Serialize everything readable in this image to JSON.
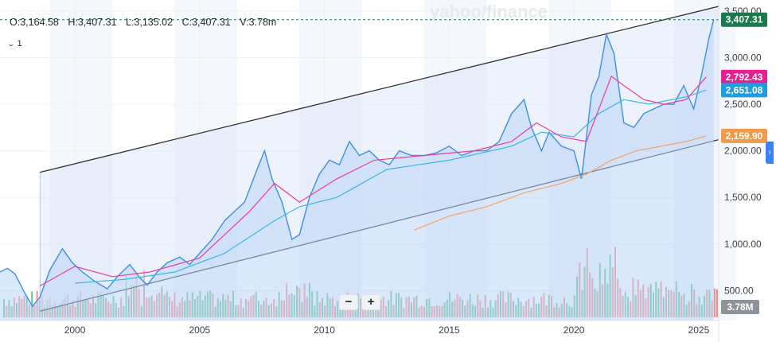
{
  "watermark": "yahoo/finance",
  "ohlc": {
    "open": "O:3,164.58",
    "high": "H:3,407.31",
    "low": "L:3,135.02",
    "close": "C:3,407.31",
    "volume": "V:3.78m"
  },
  "indicator_count": "1",
  "zoom": {
    "minus": "−",
    "plus": "+"
  },
  "colors": {
    "price_line": "#3d8fe6",
    "price_fill": "#b9d5f7",
    "ma_short": "#e8409a",
    "ma_mid": "#3bb4ea",
    "ma_long": "#f5a262",
    "channel": "#2b2f36",
    "vol_up": "#4fb77e",
    "vol_down": "#ee7a72",
    "last_price_label": "#1a7a4e",
    "ma_short_label": "#e6218f",
    "ma_mid_label": "#1e9ee0",
    "ma_long_label": "#f29a4a"
  },
  "chart_data": {
    "type": "area",
    "title": "",
    "x_ticks": [
      "2000",
      "2005",
      "2010",
      "2015",
      "2020",
      "2025"
    ],
    "y_ticks": [
      "500.00",
      "1,000.00",
      "1,500.00",
      "2,000.00",
      "2,500.00",
      "3,000.00",
      "3,500.00"
    ],
    "ylim": [
      0,
      3550
    ],
    "xlim": [
      1997.0,
      2025.8
    ],
    "price_labels": [
      {
        "value": "3,407.31",
        "y": 3407.31,
        "series": "last"
      },
      {
        "value": "2,792.43",
        "y": 2792.43,
        "series": "ma_short"
      },
      {
        "value": "2,651.08",
        "y": 2651.08,
        "series": "ma_mid"
      },
      {
        "value": "2,159.90",
        "y": 2159.9,
        "series": "ma_long"
      }
    ],
    "volume_label": "3.78M",
    "channel": {
      "upper": [
        [
          1998.6,
          1770
        ],
        [
          2025.8,
          3550
        ]
      ],
      "lower": [
        [
          1998.6,
          280
        ],
        [
          2025.8,
          2120
        ]
      ]
    },
    "price": {
      "x": [
        1997.0,
        1997.3,
        1997.6,
        1998.0,
        1998.3,
        1998.6,
        1999.0,
        1999.5,
        1999.9,
        2000.3,
        2000.8,
        2001.3,
        2001.7,
        2002.2,
        2002.6,
        2002.9,
        2003.3,
        2003.7,
        2004.2,
        2004.6,
        2005.0,
        2005.5,
        2006.0,
        2006.4,
        2006.8,
        2007.3,
        2007.6,
        2007.9,
        2008.3,
        2008.7,
        2009.0,
        2009.4,
        2009.8,
        2010.2,
        2010.6,
        2011.0,
        2011.4,
        2011.8,
        2012.2,
        2012.6,
        2013.0,
        2013.5,
        2014.0,
        2014.5,
        2015.0,
        2015.5,
        2016.0,
        2016.5,
        2017.0,
        2017.5,
        2018.0,
        2018.3,
        2018.7,
        2019.0,
        2019.5,
        2020.0,
        2020.3,
        2020.7,
        2021.0,
        2021.3,
        2021.6,
        2022.0,
        2022.4,
        2022.8,
        2023.2,
        2023.6,
        2024.0,
        2024.4,
        2024.8,
        2025.1,
        2025.4,
        2025.6
      ],
      "y": [
        700,
        740,
        680,
        470,
        330,
        430,
        720,
        950,
        800,
        700,
        600,
        520,
        650,
        780,
        640,
        560,
        700,
        800,
        860,
        780,
        900,
        1050,
        1250,
        1350,
        1450,
        1800,
        2000,
        1700,
        1450,
        1050,
        1100,
        1500,
        1750,
        1900,
        1850,
        2100,
        1950,
        2000,
        1900,
        1850,
        2000,
        1950,
        1950,
        1980,
        2050,
        1950,
        2000,
        2000,
        2100,
        2400,
        2550,
        2250,
        2000,
        2200,
        2050,
        2000,
        1700,
        2600,
        2800,
        3250,
        3050,
        2300,
        2250,
        2400,
        2450,
        2500,
        2500,
        2700,
        2450,
        2800,
        3200,
        3407
      ]
    },
    "ma_short": {
      "x": [
        1998.6,
        2000.0,
        2001.5,
        2003.0,
        2005.0,
        2007.0,
        2008.0,
        2009.0,
        2010.5,
        2012.0,
        2014.0,
        2016.0,
        2017.5,
        2018.5,
        2019.5,
        2020.5,
        2021.5,
        2022.0,
        2022.8,
        2023.6,
        2024.5,
        2025.3
      ],
      "y": [
        550,
        760,
        650,
        700,
        850,
        1350,
        1650,
        1450,
        1700,
        1900,
        1950,
        2000,
        2100,
        2300,
        2150,
        2100,
        2800,
        2700,
        2550,
        2500,
        2550,
        2792
      ]
    },
    "ma_mid": {
      "x": [
        2000.0,
        2002.0,
        2004.0,
        2006.0,
        2008.0,
        2009.0,
        2010.5,
        2012.5,
        2015.0,
        2017.5,
        2018.7,
        2020.0,
        2021.0,
        2022.0,
        2023.0,
        2024.5,
        2025.3
      ],
      "y": [
        580,
        620,
        700,
        900,
        1250,
        1400,
        1500,
        1800,
        1900,
        2050,
        2200,
        2150,
        2400,
        2550,
        2500,
        2580,
        2651
      ]
    },
    "ma_long": {
      "x": [
        2013.6,
        2015.0,
        2016.5,
        2018.0,
        2019.5,
        2020.5,
        2021.5,
        2022.5,
        2023.5,
        2024.5,
        2025.3
      ],
      "y": [
        1150,
        1300,
        1400,
        1550,
        1650,
        1750,
        1900,
        2000,
        2050,
        2100,
        2160
      ]
    }
  }
}
